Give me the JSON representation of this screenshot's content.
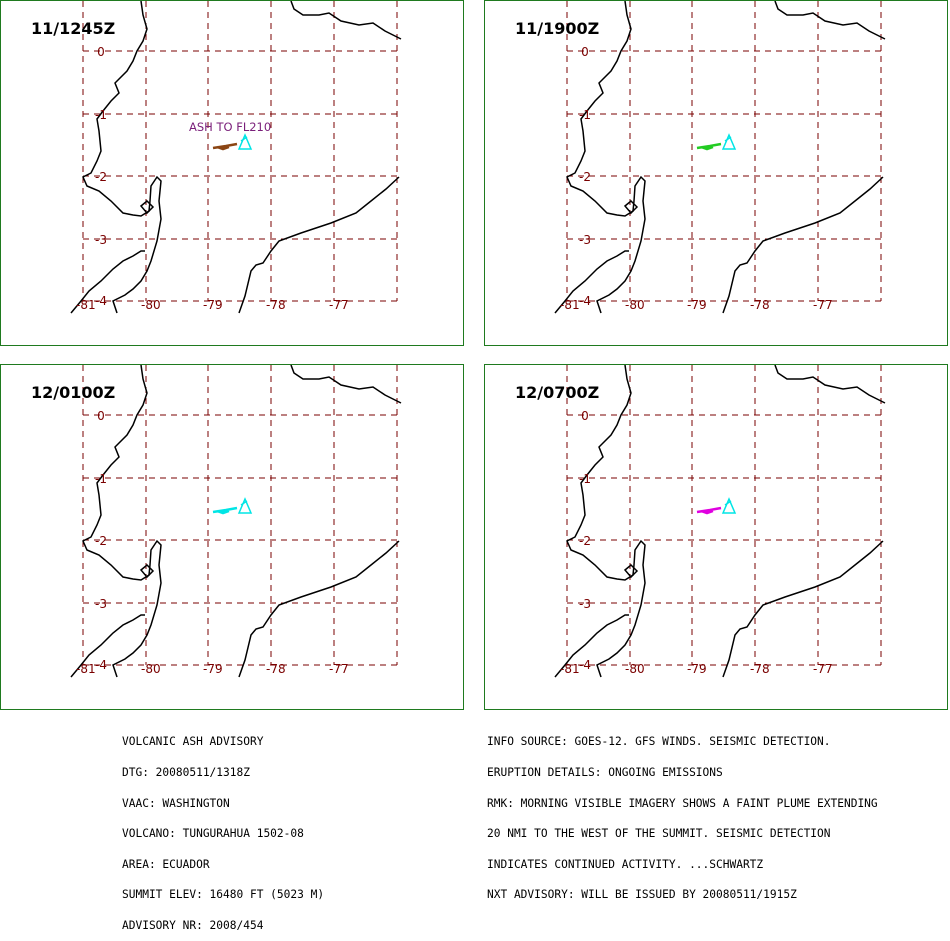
{
  "panels": [
    {
      "time": "11/1245Z",
      "plume_color": "#8b4513",
      "label": "ASH TO FL210"
    },
    {
      "time": "11/1900Z",
      "plume_color": "#22cc22",
      "label": ""
    },
    {
      "time": "12/0100Z",
      "plume_color": "#00e5e5",
      "label": ""
    },
    {
      "time": "12/0700Z",
      "plume_color": "#e000e0",
      "label": ""
    }
  ],
  "grid_labels": {
    "lat": [
      "0",
      "-1",
      "-2",
      "-3",
      "-4"
    ],
    "lon": [
      "-81",
      "-80",
      "-79",
      "-78",
      "-77"
    ]
  },
  "colors": {
    "grid": "#7a0000",
    "coast": "#000000",
    "volcano": "#00e5e5",
    "ash_label": "#7a1f7a",
    "border": "#1f7a1f"
  },
  "advisory_left": [
    "VOLCANIC ASH ADVISORY",
    "DTG: 20080511/1318Z",
    "VAAC: WASHINGTON",
    "VOLCANO: TUNGURAHUA 1502-08",
    "AREA: ECUADOR",
    "SUMMIT ELEV: 16480 FT (5023 M)",
    "ADVISORY NR: 2008/454"
  ],
  "advisory_right": [
    "INFO SOURCE: GOES-12. GFS WINDS. SEISMIC DETECTION.",
    "ERUPTION DETAILS: ONGOING EMISSIONS",
    "RMK: MORNING VISIBLE IMAGERY SHOWS A FAINT PLUME EXTENDING",
    "20 NMI TO THE WEST OF THE SUMMIT. SEISMIC DETECTION",
    "INDICATES CONTINUED ACTIVITY. ...SCHWARTZ",
    "NXT ADVISORY: WILL BE ISSUED BY 20080511/1915Z"
  ]
}
